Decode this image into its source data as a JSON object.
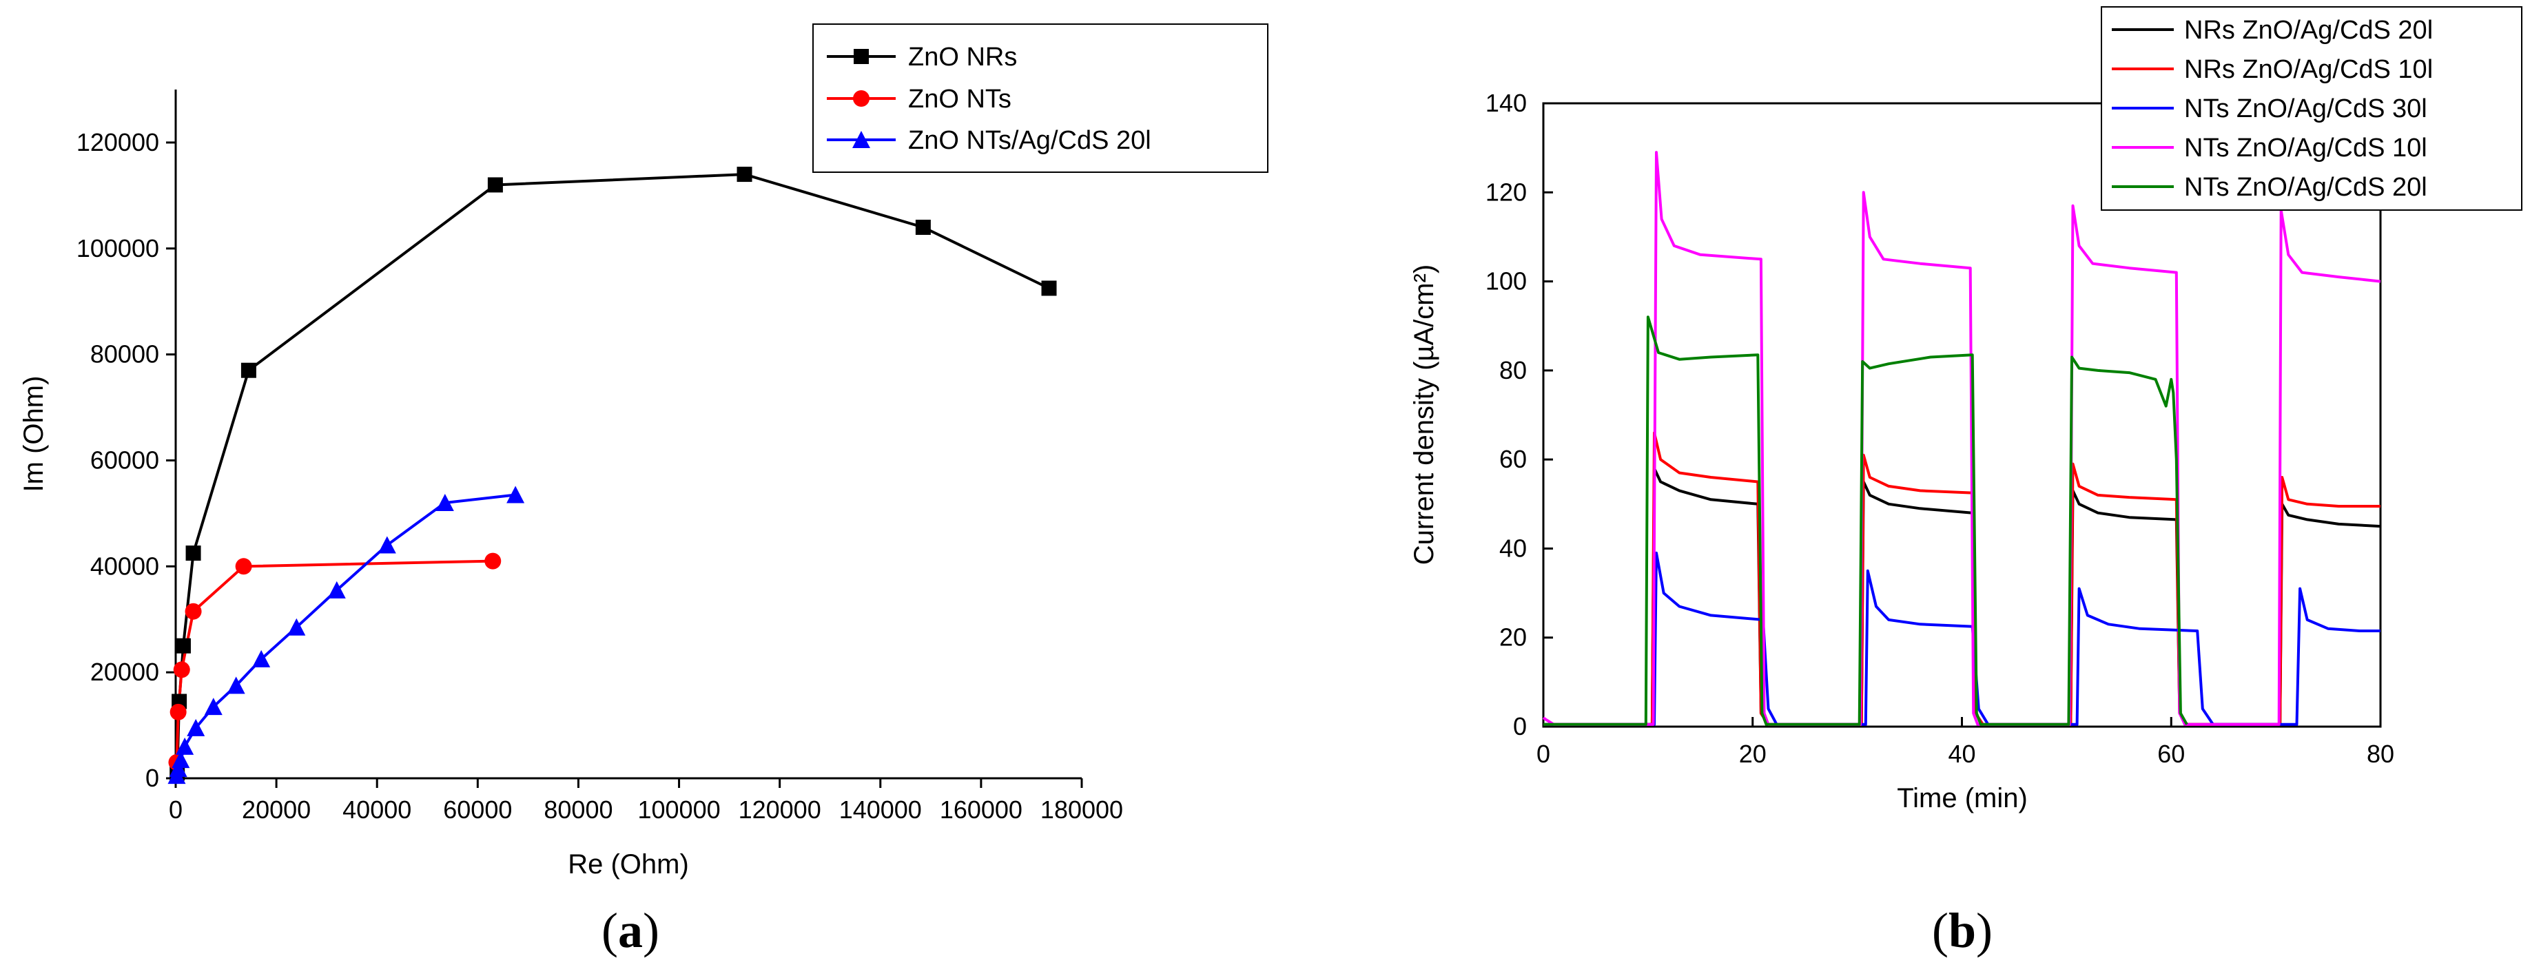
{
  "chart_data": [
    {
      "panel": "(a)",
      "panel_letter": "a",
      "type": "line",
      "title": "",
      "xlabel": "Re (Ohm)",
      "ylabel": "Im (Ohm)",
      "xlim": [
        0,
        180000
      ],
      "ylim": [
        0,
        130000
      ],
      "xticks": [
        0,
        20000,
        40000,
        60000,
        80000,
        100000,
        120000,
        140000,
        160000,
        180000
      ],
      "yticks": [
        0,
        20000,
        40000,
        60000,
        80000,
        100000,
        120000
      ],
      "legend_position": "top-right",
      "grid": false,
      "series": [
        {
          "name": "ZnO NRs",
          "color": "#000000",
          "marker": "square",
          "x": [
            300,
            700,
            1500,
            3500,
            14500,
            63500,
            113000,
            148500,
            173500
          ],
          "y": [
            1000,
            14500,
            25000,
            42500,
            77000,
            112000,
            114000,
            104000,
            92500
          ]
        },
        {
          "name": "ZnO NTs",
          "color": "#ff0000",
          "marker": "circle",
          "x": [
            200,
            500,
            1200,
            3500,
            13500,
            63000
          ],
          "y": [
            3000,
            12500,
            20500,
            31500,
            40000,
            41000
          ]
        },
        {
          "name": "ZnO NTs/Ag/CdS 20l",
          "color": "#0000ff",
          "marker": "triangle",
          "x": [
            200,
            500,
            1000,
            1800,
            4000,
            7500,
            12000,
            17000,
            24000,
            32000,
            42000,
            53500,
            67500
          ],
          "y": [
            500,
            1800,
            3500,
            6000,
            9500,
            13500,
            17500,
            22500,
            28500,
            35500,
            44000,
            52000,
            53500
          ]
        }
      ]
    },
    {
      "panel": "(b)",
      "panel_letter": "b",
      "type": "line",
      "title": "",
      "xlabel": "Time (min)",
      "ylabel": "Current density (µA/cm²)",
      "xlim": [
        0,
        80
      ],
      "ylim": [
        0,
        140
      ],
      "xticks": [
        0,
        20,
        40,
        60,
        80
      ],
      "yticks": [
        0,
        20,
        40,
        60,
        80,
        100,
        120,
        140
      ],
      "legend_position": "top-right",
      "grid": false,
      "series": [
        {
          "name": "NRs ZnO/Ag/CdS 20l",
          "color": "#000000",
          "x": [
            0,
            10.4,
            10.6,
            11.2,
            13,
            16,
            20.5,
            20.8,
            21.5,
            30.4,
            30.6,
            31.2,
            33,
            36,
            41,
            41.3,
            42,
            50.4,
            50.6,
            51.2,
            53,
            56,
            60.5,
            60.8,
            61.5,
            70.4,
            70.6,
            71.2,
            73,
            76,
            80
          ],
          "y": [
            0.5,
            0.5,
            58,
            55,
            53,
            51,
            50,
            3,
            0.5,
            0.5,
            55,
            52,
            50,
            49,
            48,
            3,
            0.5,
            0.5,
            53,
            50,
            48,
            47,
            46.5,
            3,
            0.5,
            0.5,
            50,
            47.5,
            46.5,
            45.5,
            45
          ]
        },
        {
          "name": "NRs ZnO/Ag/CdS 10l",
          "color": "#ff0000",
          "x": [
            0,
            10.4,
            10.6,
            11.2,
            13,
            16,
            20.5,
            20.8,
            21.5,
            30.4,
            30.6,
            31.2,
            33,
            36,
            41,
            41.3,
            42,
            50.4,
            50.6,
            51.2,
            53,
            56,
            60.5,
            60.8,
            61.5,
            70.4,
            70.6,
            71.2,
            73,
            76,
            80
          ],
          "y": [
            0.5,
            0.5,
            66,
            60,
            57,
            56,
            55,
            3,
            0.5,
            0.5,
            61,
            56,
            54,
            53,
            52.5,
            3,
            0.5,
            0.5,
            59,
            54,
            52,
            51.5,
            51,
            3,
            0.5,
            0.5,
            56,
            51,
            50,
            49.5,
            49.5
          ]
        },
        {
          "name": "NTs ZnO/Ag/CdS 30l",
          "color": "#0000ff",
          "x": [
            0,
            10.6,
            10.8,
            11.5,
            13,
            16,
            21,
            21.5,
            22.3,
            30.8,
            31,
            31.8,
            33,
            36,
            41,
            41.6,
            42.5,
            51,
            51.2,
            52,
            54,
            57,
            62.5,
            63,
            64,
            72,
            72.3,
            73,
            75,
            78,
            80
          ],
          "y": [
            0.5,
            0.5,
            39,
            30,
            27,
            25,
            24,
            4,
            0.5,
            0.5,
            35,
            27,
            24,
            23,
            22.5,
            4,
            0.5,
            0.5,
            31,
            25,
            23,
            22,
            21.5,
            4,
            0.5,
            0.5,
            31,
            24,
            22,
            21.5,
            21.5
          ]
        },
        {
          "name": "NTs ZnO/Ag/CdS 10l",
          "color": "#ff00ff",
          "x": [
            0,
            0.3,
            1,
            10.5,
            10.8,
            11.3,
            12.5,
            15,
            20.8,
            21.1,
            21.5,
            30.3,
            30.6,
            31.2,
            32.5,
            36,
            40.8,
            41.1,
            41.5,
            50.3,
            50.6,
            51.2,
            52.5,
            56,
            60.5,
            60.8,
            61.3,
            70.3,
            70.5,
            71.2,
            72.5,
            76,
            80
          ],
          "y": [
            2,
            1.5,
            0.5,
            0.5,
            129,
            114,
            108,
            106,
            105,
            3,
            0.5,
            0.5,
            120,
            110,
            105,
            104,
            103,
            3,
            0.5,
            0.5,
            117,
            108,
            104,
            103,
            102,
            3,
            0.5,
            0.5,
            116,
            106,
            102,
            101,
            100
          ]
        },
        {
          "name": "NTs ZnO/Ag/CdS 20l",
          "color": "#008000",
          "x": [
            0,
            9.8,
            10,
            11,
            13,
            16,
            20.5,
            20.9,
            21.3,
            30.2,
            30.5,
            31.2,
            33,
            37,
            41,
            41.4,
            41.8,
            50.2,
            50.5,
            51.2,
            53,
            56,
            58.5,
            59.5,
            60,
            60.2,
            60.5,
            60.9,
            61.5
          ],
          "y": [
            0.5,
            0.5,
            92,
            84,
            82.5,
            83,
            83.5,
            3,
            0.5,
            0.5,
            82,
            80.5,
            81.5,
            83,
            83.5,
            3,
            0.5,
            0.5,
            83,
            80.5,
            80,
            79.5,
            78,
            72,
            78,
            75,
            60,
            3,
            0.5
          ]
        }
      ]
    }
  ]
}
